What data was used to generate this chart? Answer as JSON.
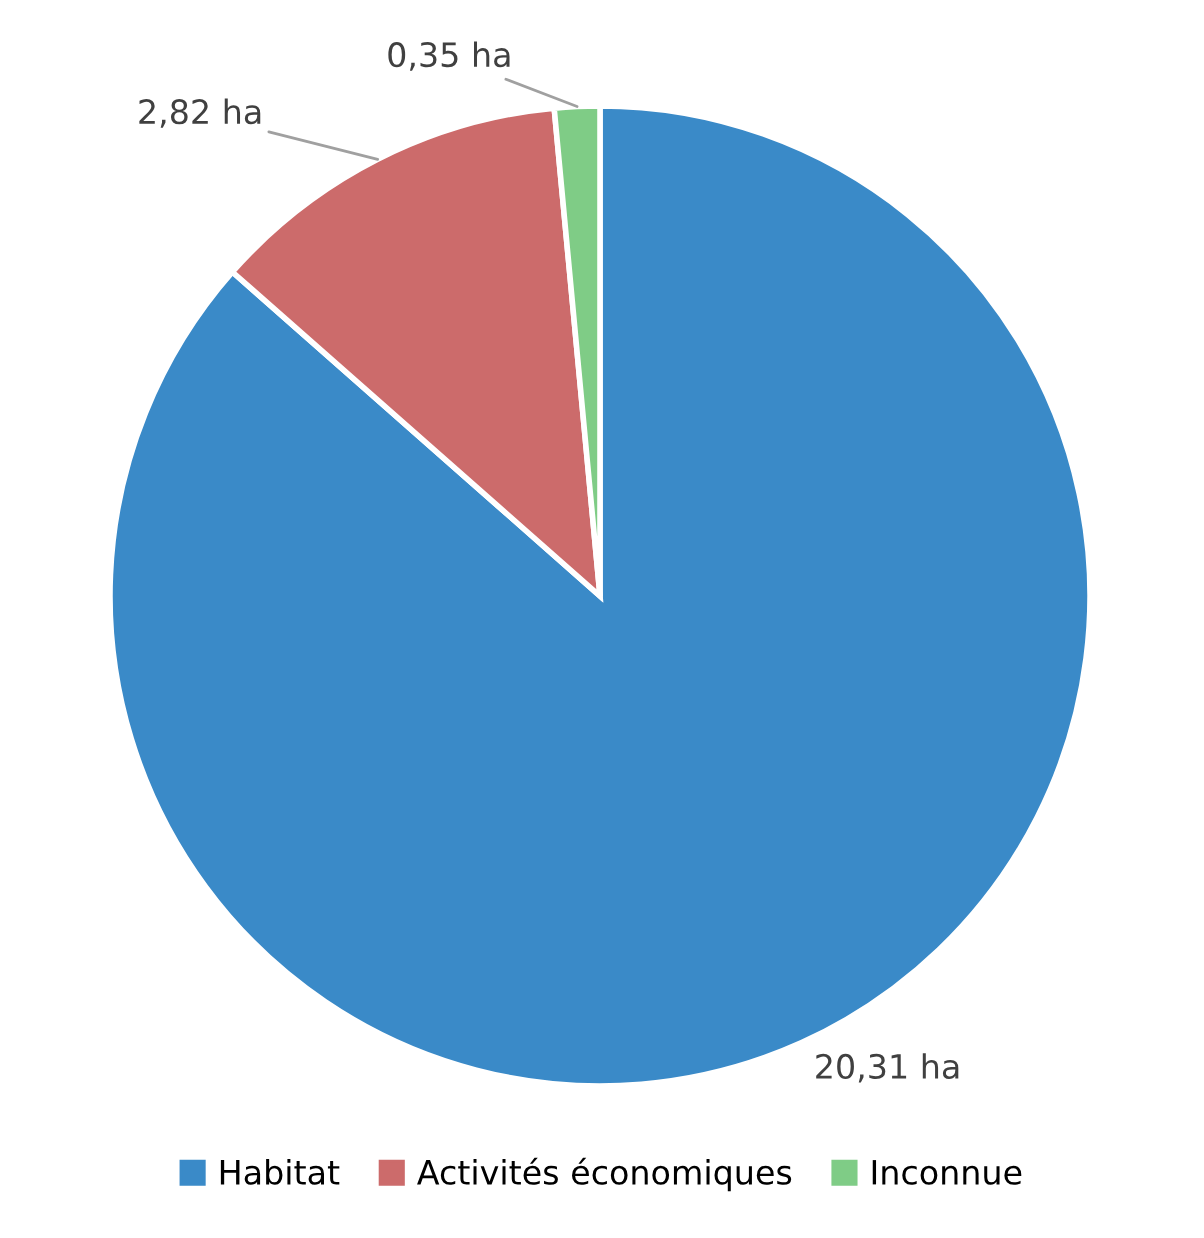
{
  "chart_data": {
    "type": "pie",
    "categories": [
      "Habitat",
      "Activités économiques",
      "Inconnue"
    ],
    "values": [
      20.31,
      2.82,
      0.35
    ],
    "colors": [
      "#3a8ac8",
      "#cc6b6b",
      "#7fcc86"
    ],
    "value_labels": [
      "20,31 ha",
      "2,82 ha",
      "0,35 ha"
    ],
    "legend": "bottom"
  }
}
